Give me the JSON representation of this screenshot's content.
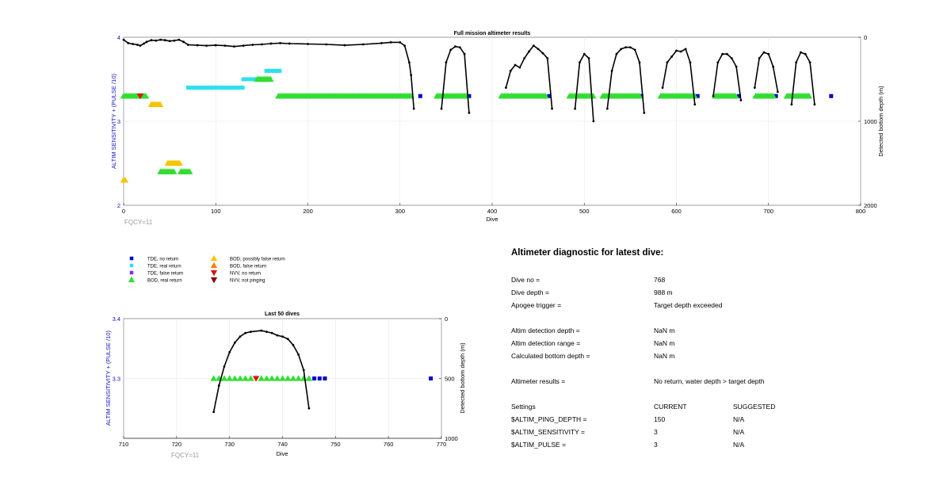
{
  "chart_data": [
    {
      "type": "scatter",
      "title": "Full mission altimeter results",
      "xlabel": "Dive",
      "ylabel": "ALTIM SENSITIVITY + (PULSE /10)",
      "y2label": "Detected bottom depth (m)",
      "xlim": [
        0,
        800
      ],
      "ylim": [
        2,
        4
      ],
      "y2lim": [
        0,
        2000
      ],
      "y2_reversed": true,
      "xticks": [
        "0",
        "100",
        "200",
        "300",
        "400",
        "500",
        "600",
        "700",
        "800"
      ],
      "yticks": [
        "2",
        "3",
        "4"
      ],
      "y2ticks": [
        "0",
        "1000",
        "2000"
      ],
      "annotation": "FQCY=11",
      "grid": true,
      "markers": [
        {
          "series": "TDE, no return",
          "x": [
            322,
            375,
            462,
            508,
            562,
            623,
            668,
            708,
            735,
            768
          ],
          "y": [
            3.3,
            3.3,
            3.3,
            3.3,
            3.3,
            3.3,
            3.3,
            3.3,
            3.3,
            3.3
          ]
        },
        {
          "series": "TDE, real return",
          "x_start": [
            70,
            130,
            155
          ],
          "x_end": [
            130,
            160,
            170
          ],
          "y": [
            3.4,
            3.5,
            3.6
          ]
        },
        {
          "series": "BOD, real return",
          "x_start": [
            0,
            40,
            62,
            145,
            168,
            340,
            410,
            484,
            520,
            583,
            642,
            686,
            720
          ],
          "x_end": [
            25,
            55,
            72,
            160,
            312,
            373,
            458,
            510,
            560,
            620,
            665,
            706,
            745
          ],
          "y": [
            3.3,
            2.4,
            2.4,
            3.5,
            3.3,
            3.3,
            3.3,
            3.3,
            3.3,
            3.3,
            3.3,
            3.3,
            3.3
          ]
        },
        {
          "series": "BOD, possibly false return",
          "x_start": [
            0,
            30,
            48
          ],
          "x_end": [
            2,
            40,
            62
          ],
          "y": [
            2.3,
            3.2,
            2.5
          ]
        },
        {
          "series": "NVV, no return",
          "x": [
            18
          ],
          "y": [
            3.3
          ]
        }
      ],
      "depth_profiles": [
        {
          "x": [
            0,
            5,
            10,
            15,
            18,
            22,
            25,
            30,
            35,
            40,
            45,
            50,
            55,
            60,
            65,
            70,
            80,
            90,
            100,
            110,
            120,
            130,
            140,
            150,
            160,
            170,
            180,
            200,
            220,
            240,
            260,
            280,
            290,
            300,
            305,
            310,
            312,
            315
          ],
          "y": [
            30,
            70,
            80,
            90,
            100,
            75,
            55,
            35,
            40,
            30,
            35,
            45,
            40,
            30,
            55,
            90,
            95,
            100,
            95,
            100,
            110,
            100,
            90,
            85,
            75,
            70,
            75,
            80,
            85,
            95,
            85,
            70,
            60,
            60,
            100,
            300,
            450,
            850
          ]
        },
        {
          "x": [
            345,
            350,
            355,
            360,
            365,
            370,
            375
          ],
          "y": [
            850,
            300,
            150,
            110,
            120,
            200,
            900
          ]
        },
        {
          "x": [
            415,
            420,
            425,
            430,
            435,
            440,
            445,
            450,
            455,
            460,
            465
          ],
          "y": [
            600,
            400,
            330,
            360,
            250,
            170,
            100,
            140,
            190,
            250,
            850
          ]
        },
        {
          "x": [
            490,
            495,
            500,
            505,
            510
          ],
          "y": [
            850,
            300,
            200,
            250,
            1000
          ]
        },
        {
          "x": [
            525,
            530,
            535,
            540,
            545,
            550,
            555,
            560,
            565
          ],
          "y": [
            850,
            400,
            200,
            140,
            120,
            120,
            150,
            300,
            900
          ]
        },
        {
          "x": [
            585,
            590,
            595,
            600,
            605,
            610,
            615,
            620
          ],
          "y": [
            600,
            300,
            230,
            160,
            170,
            140,
            300,
            800
          ]
        },
        {
          "x": [
            640,
            645,
            650,
            655,
            660,
            665,
            670
          ],
          "y": [
            700,
            300,
            200,
            200,
            250,
            350,
            750
          ]
        },
        {
          "x": [
            685,
            690,
            695,
            700,
            705,
            710
          ],
          "y": [
            600,
            250,
            180,
            200,
            350,
            650
          ]
        },
        {
          "x": [
            725,
            730,
            735,
            740,
            745,
            750
          ],
          "y": [
            800,
            300,
            180,
            200,
            300,
            800
          ]
        }
      ]
    },
    {
      "type": "scatter",
      "title": "Last 50 dives",
      "xlabel": "Dive",
      "ylabel": "ALTIM SENSITIVITY + (PULSE /10)",
      "y2label": "Detected bottom depth (m)",
      "xlim": [
        710,
        770
      ],
      "ylim": [
        3.2,
        3.4
      ],
      "y2lim": [
        0,
        1000
      ],
      "y2_reversed": true,
      "xticks": [
        "710",
        "720",
        "730",
        "740",
        "750",
        "760",
        "770"
      ],
      "yticks": [
        "3.4",
        "3.3"
      ],
      "y2ticks": [
        "0",
        "500",
        "1000"
      ],
      "annotation": "FQCY=11",
      "grid": true,
      "bod_real": {
        "x": [
          727,
          728,
          729,
          730,
          731,
          732,
          733,
          734,
          736,
          737,
          738,
          739,
          740,
          741,
          742,
          743,
          744,
          745
        ],
        "y": 3.3
      },
      "nvv_no_return": {
        "x": [
          735
        ],
        "y": 3.3
      },
      "tde_no_return": {
        "x": [
          746,
          747,
          748,
          768
        ],
        "y": 3.3
      },
      "depth_profile": {
        "x": [
          727,
          728,
          729,
          730,
          731,
          732,
          733,
          734,
          736,
          737,
          738,
          739,
          740,
          741,
          742,
          743,
          744,
          745
        ],
        "y": [
          780,
          560,
          400,
          280,
          200,
          150,
          120,
          110,
          100,
          110,
          120,
          140,
          150,
          170,
          220,
          300,
          430,
          750
        ]
      }
    }
  ],
  "legend": {
    "items": [
      {
        "label": "TDE, no return",
        "symbol": "square",
        "color": "#0000cc"
      },
      {
        "label": "TDE, real return",
        "symbol": "square",
        "color": "#2ee0ef"
      },
      {
        "label": "TDE, false return",
        "symbol": "square",
        "color": "#8a2be2"
      },
      {
        "label": "BOD, real return",
        "symbol": "triangle-up",
        "color": "#33dd33"
      },
      {
        "label": "BOD, possibly false return",
        "symbol": "triangle-up",
        "color": "#f5c400"
      },
      {
        "label": "BOD, false return",
        "symbol": "triangle-up",
        "color": "#f08000"
      },
      {
        "label": "NVV, no return",
        "symbol": "triangle-down",
        "color": "#dd1111"
      },
      {
        "label": "NVV, not pinging",
        "symbol": "triangle-down",
        "color": "#880000"
      }
    ]
  },
  "diagnostic": {
    "title": "Altimeter diagnostic for latest dive:",
    "dive_no_label": "Dive no =",
    "dive_no": "768",
    "dive_depth_label": "Dive depth =",
    "dive_depth": "988 m",
    "apogee_label": "Apogee trigger =",
    "apogee": "Target depth exceeded",
    "detect_depth_label": "Altim detection depth =",
    "detect_depth": "NaN m",
    "detect_range_label": "Altim detection range =",
    "detect_range": "NaN m",
    "calc_bottom_label": "Calculated bottom depth =",
    "calc_bottom": "NaN m",
    "results_label": "Altimeter results =",
    "results": "No return, water depth > target depth",
    "settings_label": "Settings",
    "current_label": "CURRENT",
    "suggested_label": "SUGGESTED",
    "ping_label": "$ALTIM_PING_DEPTH =",
    "ping_cur": "150",
    "ping_sug": "N/A",
    "sens_label": "$ALTIM_SENSITIVITY =",
    "sens_cur": "3",
    "sens_sug": "N/A",
    "pulse_label": "$ALTIM_PULSE =",
    "pulse_cur": "3",
    "pulse_sug": "N/A"
  }
}
